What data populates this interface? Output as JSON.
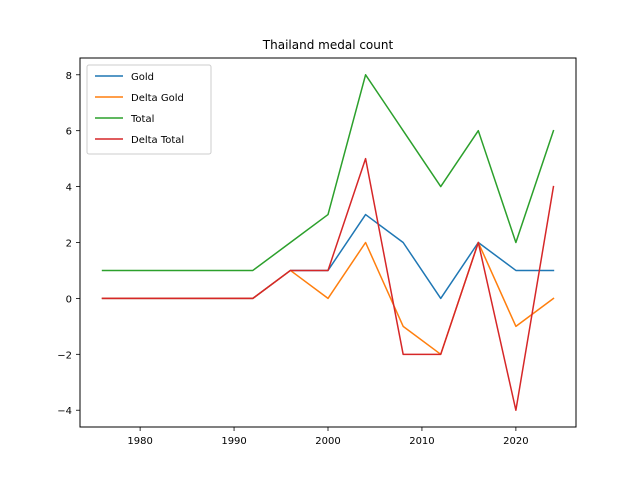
{
  "chart_data": {
    "type": "line",
    "title": "Thailand medal count",
    "xlabel": "",
    "ylabel": "",
    "x": [
      1976,
      1984,
      1988,
      1992,
      1996,
      2000,
      2004,
      2008,
      2012,
      2016,
      2020,
      2024
    ],
    "series": [
      {
        "name": "Gold",
        "color": "#1f77b4",
        "values": [
          0,
          0,
          0,
          0,
          1,
          1,
          3,
          2,
          0,
          2,
          1,
          1
        ]
      },
      {
        "name": "Delta Gold",
        "color": "#ff7f0e",
        "values": [
          0,
          0,
          0,
          0,
          1,
          0,
          2,
          -1,
          -2,
          2,
          -1,
          0
        ]
      },
      {
        "name": "Total",
        "color": "#2ca02c",
        "values": [
          1,
          1,
          1,
          1,
          2,
          3,
          8,
          6,
          4,
          6,
          2,
          6
        ]
      },
      {
        "name": "Delta Total",
        "color": "#d62728",
        "values": [
          0,
          0,
          0,
          0,
          1,
          1,
          5,
          -2,
          -2,
          2,
          -4,
          4
        ]
      }
    ],
    "xlim": [
      1973.6,
      2026.4
    ],
    "ylim": [
      -4.6,
      8.6
    ],
    "xticks": [
      1980,
      1990,
      2000,
      2010,
      2020
    ],
    "yticks": [
      -4,
      -2,
      0,
      2,
      4,
      6,
      8
    ],
    "grid": false,
    "legend_position": "top-left"
  }
}
